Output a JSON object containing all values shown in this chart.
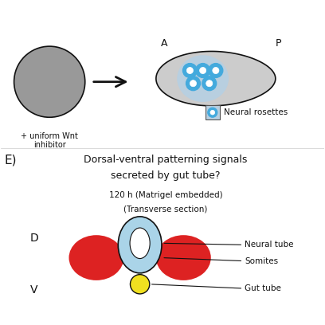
{
  "bg_color": "#ffffff",
  "panel_E_label": "E)",
  "title_line1": "Dorsal-ventral patterning signals",
  "title_line2": "secreted by gut tube?",
  "subtitle_line1": "120 h (Matrigel embedded)",
  "subtitle_line2": "(Transverse section)",
  "label_D": "D",
  "label_V": "V",
  "label_A": "A",
  "label_P": "P",
  "label_neural_tube": "Neural tube",
  "label_somites": "Somites",
  "label_gut_tube": "Gut tube",
  "label_neural_rosettes": "Neural rosettes",
  "label_wnt": "+ uniform Wnt\ninhibitor",
  "color_gray_circle": "#999999",
  "color_red_somite": "#dd2222",
  "color_blue_neural": "#aad4e8",
  "color_yellow_gut": "#f0e020",
  "color_green_arrow": "#00aa00",
  "color_black": "#111111",
  "color_blue_rosette": "#44aadd"
}
